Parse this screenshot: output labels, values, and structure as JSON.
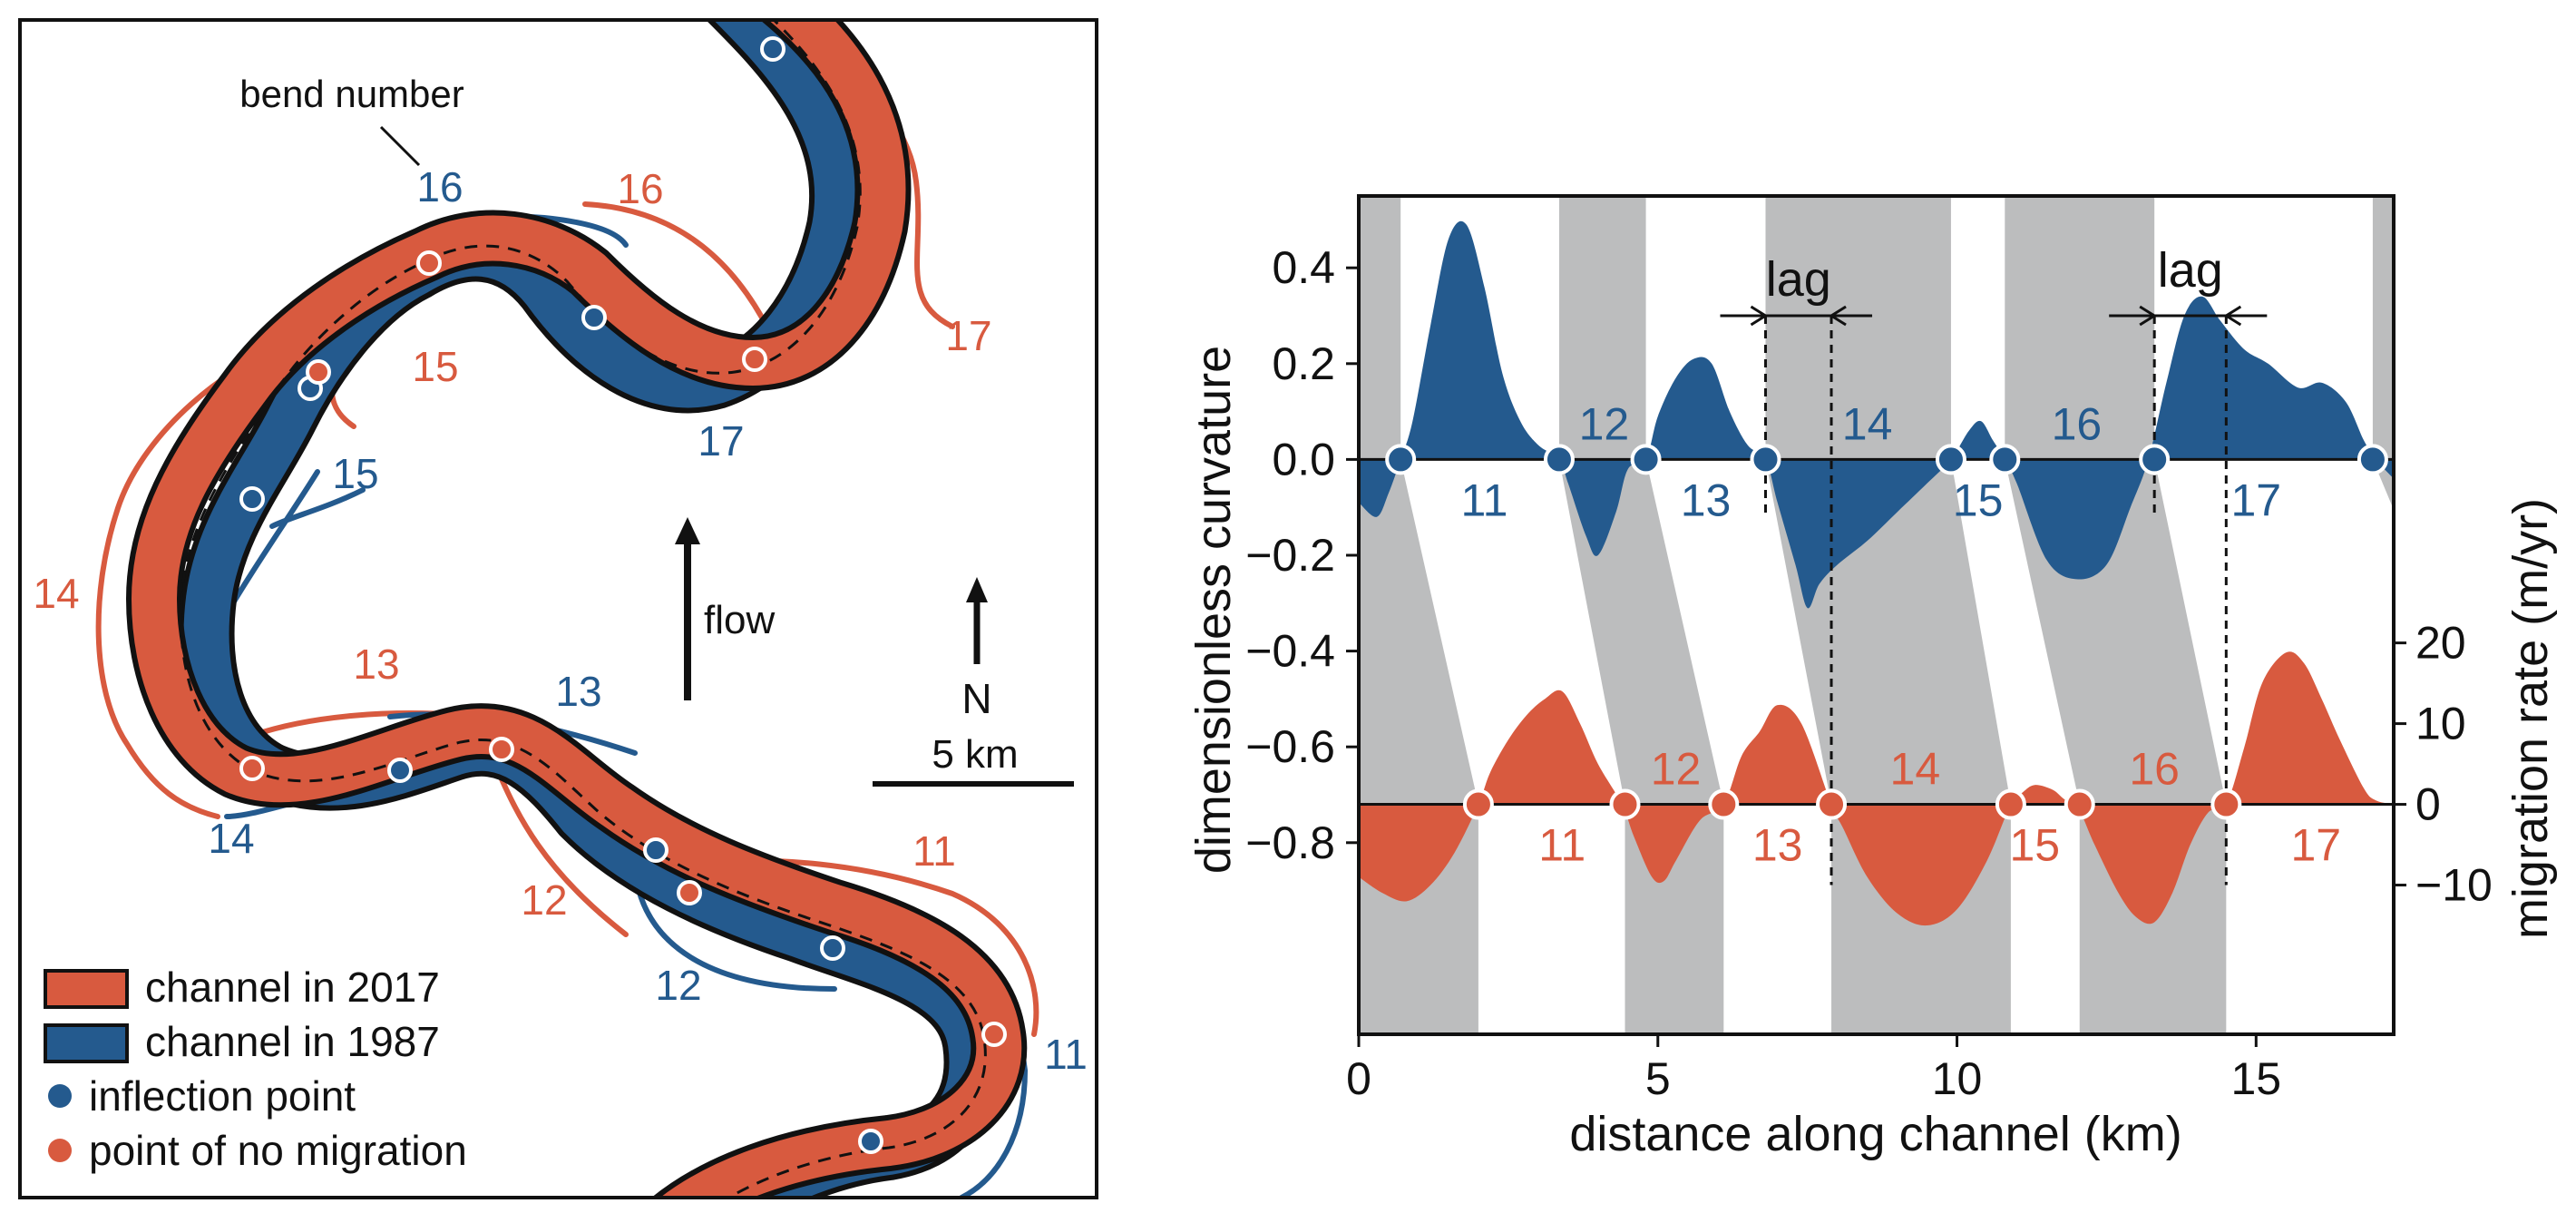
{
  "colors": {
    "blue": "#245a8e",
    "red": "#d85a3f",
    "gray_band": "#bcbdbe",
    "ink": "#111111"
  },
  "map": {
    "bend_number_label": "bend number",
    "flow_label": "flow",
    "north_label": "N",
    "scale_label": "5 km",
    "legend": [
      {
        "label": "channel in 2017",
        "color": "#d85a3f",
        "kind": "band"
      },
      {
        "label": "channel in 1987",
        "color": "#245a8e",
        "kind": "band"
      },
      {
        "label": "inflection point",
        "color": "#245a8e",
        "kind": "dot"
      },
      {
        "label": "point of no migration",
        "color": "#d85a3f",
        "kind": "dot"
      }
    ],
    "bend_labels_1987": [
      "11",
      "12",
      "13",
      "14",
      "15",
      "16",
      "17"
    ],
    "bend_labels_2017": [
      "11",
      "12",
      "13",
      "14",
      "15",
      "16",
      "17"
    ]
  },
  "chart_data": {
    "type": "area",
    "xlabel": "distance along channel (km)",
    "ylabel": "dimensionless curvature",
    "y2label": "migration rate (m/yr)",
    "xlim": [
      0,
      17.3
    ],
    "x_ticks": [
      0,
      5,
      10,
      15
    ],
    "ylim": [
      -1.2,
      0.55
    ],
    "y_ticks": [
      0.4,
      0.2,
      0.0,
      -0.2,
      -0.4,
      -0.6,
      -0.8
    ],
    "y_tick_labels": [
      "0.4",
      "0.2",
      "0.0",
      "−0.2",
      "−0.4",
      "−0.6",
      "−0.8"
    ],
    "y2_ticks": [
      20,
      10,
      0,
      -10
    ],
    "y2_tick_labels": [
      "20",
      "10",
      "0",
      "−10"
    ],
    "lag_label": "lag",
    "series": [
      {
        "name": "dimensionless curvature",
        "color": "#245a8e",
        "x": [
          0,
          0.3,
          0.5,
          0.7,
          0.9,
          1.2,
          1.5,
          1.8,
          2.1,
          2.4,
          2.7,
          3.0,
          3.35,
          3.5,
          3.8,
          4.0,
          4.3,
          4.5,
          4.8,
          5.0,
          5.3,
          5.6,
          5.9,
          6.2,
          6.5,
          6.8,
          7.0,
          7.3,
          7.5,
          7.7,
          8.0,
          8.5,
          9.0,
          9.5,
          9.9,
          10.2,
          10.4,
          10.6,
          10.8,
          11.0,
          11.5,
          12.0,
          12.5,
          12.9,
          13.2,
          13.5,
          13.8,
          14.1,
          14.4,
          14.8,
          15.2,
          15.7,
          16.1,
          16.5,
          16.8,
          17.0,
          17.3
        ],
        "y": [
          -0.09,
          -0.12,
          -0.07,
          0.0,
          0.08,
          0.28,
          0.46,
          0.49,
          0.36,
          0.18,
          0.08,
          0.03,
          0.0,
          -0.05,
          -0.16,
          -0.2,
          -0.11,
          -0.02,
          0.0,
          0.09,
          0.17,
          0.21,
          0.2,
          0.1,
          0.03,
          0.0,
          -0.09,
          -0.22,
          -0.31,
          -0.26,
          -0.22,
          -0.17,
          -0.11,
          -0.05,
          0.0,
          0.06,
          0.08,
          0.04,
          0.0,
          -0.05,
          -0.21,
          -0.25,
          -0.22,
          -0.1,
          0.0,
          0.16,
          0.3,
          0.34,
          0.29,
          0.23,
          0.2,
          0.15,
          0.16,
          0.12,
          0.04,
          0.0,
          -0.04
        ]
      },
      {
        "name": "migration rate",
        "color": "#d85a3f",
        "x": [
          0,
          0.4,
          0.8,
          1.2,
          1.6,
          2.0,
          2.2,
          2.5,
          2.8,
          3.1,
          3.4,
          3.7,
          4.0,
          4.4,
          4.6,
          4.9,
          5.1,
          5.3,
          5.7,
          6.1,
          6.4,
          6.7,
          7.0,
          7.4,
          7.9,
          8.1,
          8.5,
          9.0,
          9.5,
          10.0,
          10.5,
          10.9,
          11.1,
          11.3,
          11.6,
          11.8,
          12.0,
          12.3,
          12.7,
          13.0,
          13.3,
          13.6,
          13.9,
          14.2,
          14.5,
          14.8,
          15.1,
          15.5,
          15.8,
          16.1,
          16.4,
          16.8,
          17.0,
          17.3
        ],
        "y": [
          -9,
          -11,
          -12,
          -10,
          -6,
          0,
          4,
          8,
          11,
          13,
          14,
          10,
          5,
          0,
          -4,
          -9,
          -9.5,
          -7,
          -2,
          0,
          6,
          9,
          12.3,
          10,
          0,
          -3,
          -9,
          -13.5,
          -15,
          -13,
          -7,
          0,
          1.5,
          2.4,
          1.8,
          0.6,
          0,
          -5,
          -11,
          -14,
          -14.6,
          -11,
          -5,
          -1,
          0,
          7,
          15,
          18.8,
          17.5,
          13,
          8,
          2,
          0.5,
          0
        ]
      }
    ],
    "inflection_points_km": [
      0.7,
      3.35,
      4.8,
      6.8,
      9.9,
      10.8,
      13.3,
      16.95
    ],
    "no_migration_points_km": [
      2.0,
      4.45,
      6.1,
      7.9,
      10.9,
      12.05,
      14.5
    ],
    "bend_labels_curvature": [
      {
        "label": "11",
        "x": 2.1
      },
      {
        "label": "12",
        "x": 4.1
      },
      {
        "label": "13",
        "x": 5.8
      },
      {
        "label": "14",
        "x": 8.5
      },
      {
        "label": "15",
        "x": 10.35
      },
      {
        "label": "16",
        "x": 12.0
      },
      {
        "label": "17",
        "x": 15.0
      }
    ],
    "bend_labels_migration": [
      {
        "label": "11",
        "x": 3.4
      },
      {
        "label": "12",
        "x": 5.3
      },
      {
        "label": "13",
        "x": 7.0
      },
      {
        "label": "14",
        "x": 9.3
      },
      {
        "label": "15",
        "x": 11.3
      },
      {
        "label": "16",
        "x": 13.3
      },
      {
        "label": "17",
        "x": 16.0
      }
    ]
  }
}
